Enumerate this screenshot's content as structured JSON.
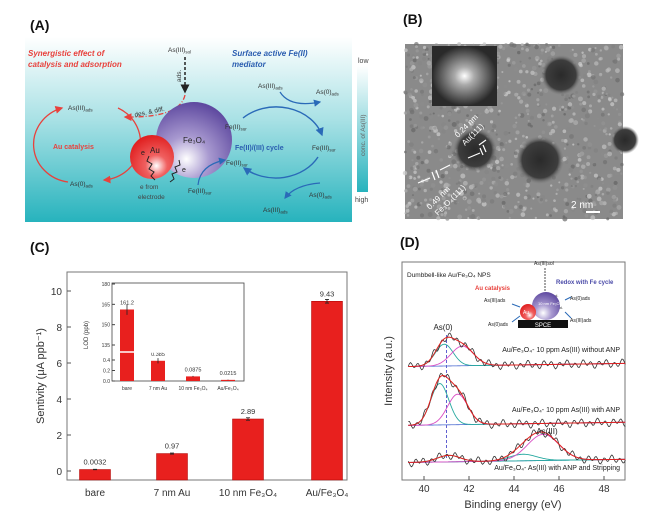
{
  "panels": {
    "a": {
      "label": "(A)",
      "title_left": [
        "Synergistic effect of",
        "catalysis and adsorption"
      ],
      "title_right": [
        "Surface active Fe(II)",
        "mediator"
      ],
      "colorbar": {
        "low": "low",
        "high": "high",
        "label": "conc. of As(III)"
      },
      "particles": {
        "au": "Au",
        "e": "e",
        "fe3o4": "Fe₃O₄"
      },
      "ads_label": "ads.",
      "desdiff_label": "des. & diff.",
      "au_catalysis": "Au catalysis",
      "cycle_label": "Fe(II)/(III) cycle",
      "electrode_lines": [
        "e from",
        "electrode"
      ],
      "species": [
        {
          "t": "As(III)",
          "s": "sol",
          "k": "as3-sol"
        },
        {
          "t": "As(III)",
          "s": "ads",
          "k": "as3-ads-left"
        },
        {
          "t": "As(0)",
          "s": "ads",
          "k": "as0-ads-left"
        },
        {
          "t": "Fe(II)",
          "s": "sur",
          "k": "fe2-sur-top"
        },
        {
          "t": "Fe(III)",
          "s": "sur",
          "k": "fe3-sur-right"
        },
        {
          "t": "Fe(II)",
          "s": "sur",
          "k": "fe2-sur-bottom"
        },
        {
          "t": "Fe(III)",
          "s": "sur",
          "k": "fe3-sur-bottom"
        },
        {
          "t": "As(III)",
          "s": "ads",
          "k": "as3-ads-top-right"
        },
        {
          "t": "As(0)",
          "s": "ads",
          "k": "as0-ads-top-right"
        },
        {
          "t": "As(0)",
          "s": "ads",
          "k": "as0-ads-bottom-right"
        },
        {
          "t": "As(III)",
          "s": "ads",
          "k": "as3-ads-bottom-right"
        }
      ],
      "colors": {
        "red": "#e8413c",
        "blue": "#2a5db0",
        "teal": "#27b3bd"
      }
    },
    "b": {
      "label": "(B)",
      "au_spacing": "0.24 nm",
      "au_plane": "Au(111)",
      "fe_spacing": "0.49 nm",
      "fe_plane": "Fe₃O₄(111)",
      "scale_bar": "2 nm"
    },
    "c": {
      "label": "(C)"
    },
    "d": {
      "label": "(D)",
      "inset": {
        "title": "Dumbbell-like Au/Fe₃O₄ NPS",
        "au_catalysis": "Au catalysis",
        "redox": "Redox with Fe cycle",
        "electrode": "SPCE",
        "np_au": "Au",
        "np_fe": "10 nm Fe₃O₄",
        "as3_sol": "As(III)sol",
        "as3_ads_left": "As(III)ads",
        "as0_ads_left": "As(0)ads",
        "as0_ads_right": "As(0)ads",
        "as3_ads_right": "As(III)ads",
        "red": "Red.",
        "oxi": "Oxi."
      },
      "peak_as0": "As(0)",
      "peak_as3": "As(III)"
    }
  },
  "chart_data": [
    {
      "type": "bar",
      "panel": "C",
      "categories": [
        "bare",
        "7 nm Au",
        "10 nm Fe₃O₄",
        "Au/Fe₃O₄"
      ],
      "values": [
        0.0032,
        0.97,
        2.89,
        9.43
      ],
      "value_labels": [
        "0.0032",
        "0.97",
        "2.89",
        "9.43"
      ],
      "errors": [
        0.01,
        0.03,
        0.07,
        0.1
      ],
      "ylabel": "Sentivity (μA ppb⁻¹)",
      "xlabel": "",
      "ylim": [
        -0.4,
        10.9
      ],
      "yticks": [
        0,
        2,
        4,
        6,
        8,
        10
      ],
      "color": "#e8201e",
      "inset": {
        "type": "bar",
        "categories": [
          "bare",
          "7 nm Au",
          "10 nm Fe₃O₄",
          "Au/Fe₃O₄"
        ],
        "values": [
          161.2,
          0.385,
          0.0875,
          0.0215
        ],
        "value_labels": [
          "161.2",
          "0.385",
          "0.0875",
          "0.0215"
        ],
        "errors": [
          4,
          0.05,
          0.01,
          0.005
        ],
        "ylabel": "LOD (ppb)",
        "broken_axis": {
          "lower": [
            0,
            0.5
          ],
          "upper": [
            130,
            180
          ]
        },
        "yticks_lower": [
          "0.0",
          "0.2",
          "0.4"
        ],
        "yticks_upper": [
          "135",
          "150",
          "165",
          "180"
        ]
      }
    },
    {
      "type": "line",
      "panel": "D",
      "xlabel": "Binding energy (eV)",
      "ylabel": "Intensity (a.u.)",
      "xlim": [
        39,
        49
      ],
      "xticks": [
        40,
        42,
        44,
        46,
        48
      ],
      "ylim": [
        0,
        100
      ],
      "reference_line_x": 41.0,
      "series": [
        {
          "name": "Au/Fe₃O₄- 10 ppm As(III) without ANP",
          "offset": 52,
          "components": [
            {
              "center": 40.9,
              "sigma": 0.4,
              "amp": 10,
              "color": "#27a9a0"
            },
            {
              "center": 41.7,
              "sigma": 0.5,
              "amp": 9,
              "color": "#d94fc4"
            }
          ]
        },
        {
          "name": "Au/Fe₃O₄- 10 ppm As(III) with ANP",
          "offset": 25,
          "components": [
            {
              "center": 40.7,
              "sigma": 0.4,
              "amp": 19,
              "color": "#27a9a0"
            },
            {
              "center": 41.5,
              "sigma": 0.45,
              "amp": 14,
              "color": "#d94fc4"
            }
          ]
        },
        {
          "name": "Au/Fe₃O₄- As(III) with ANP and Stripping",
          "offset": 8,
          "components": [
            {
              "center": 41.1,
              "sigma": 0.5,
              "amp": 3,
              "color": "#27a9a0"
            },
            {
              "center": 44.4,
              "sigma": 0.6,
              "amp": 3,
              "color": "#27a9a0"
            },
            {
              "center": 45.3,
              "sigma": 0.7,
              "amp": 12,
              "color": "#d94fc4"
            }
          ]
        }
      ]
    }
  ]
}
